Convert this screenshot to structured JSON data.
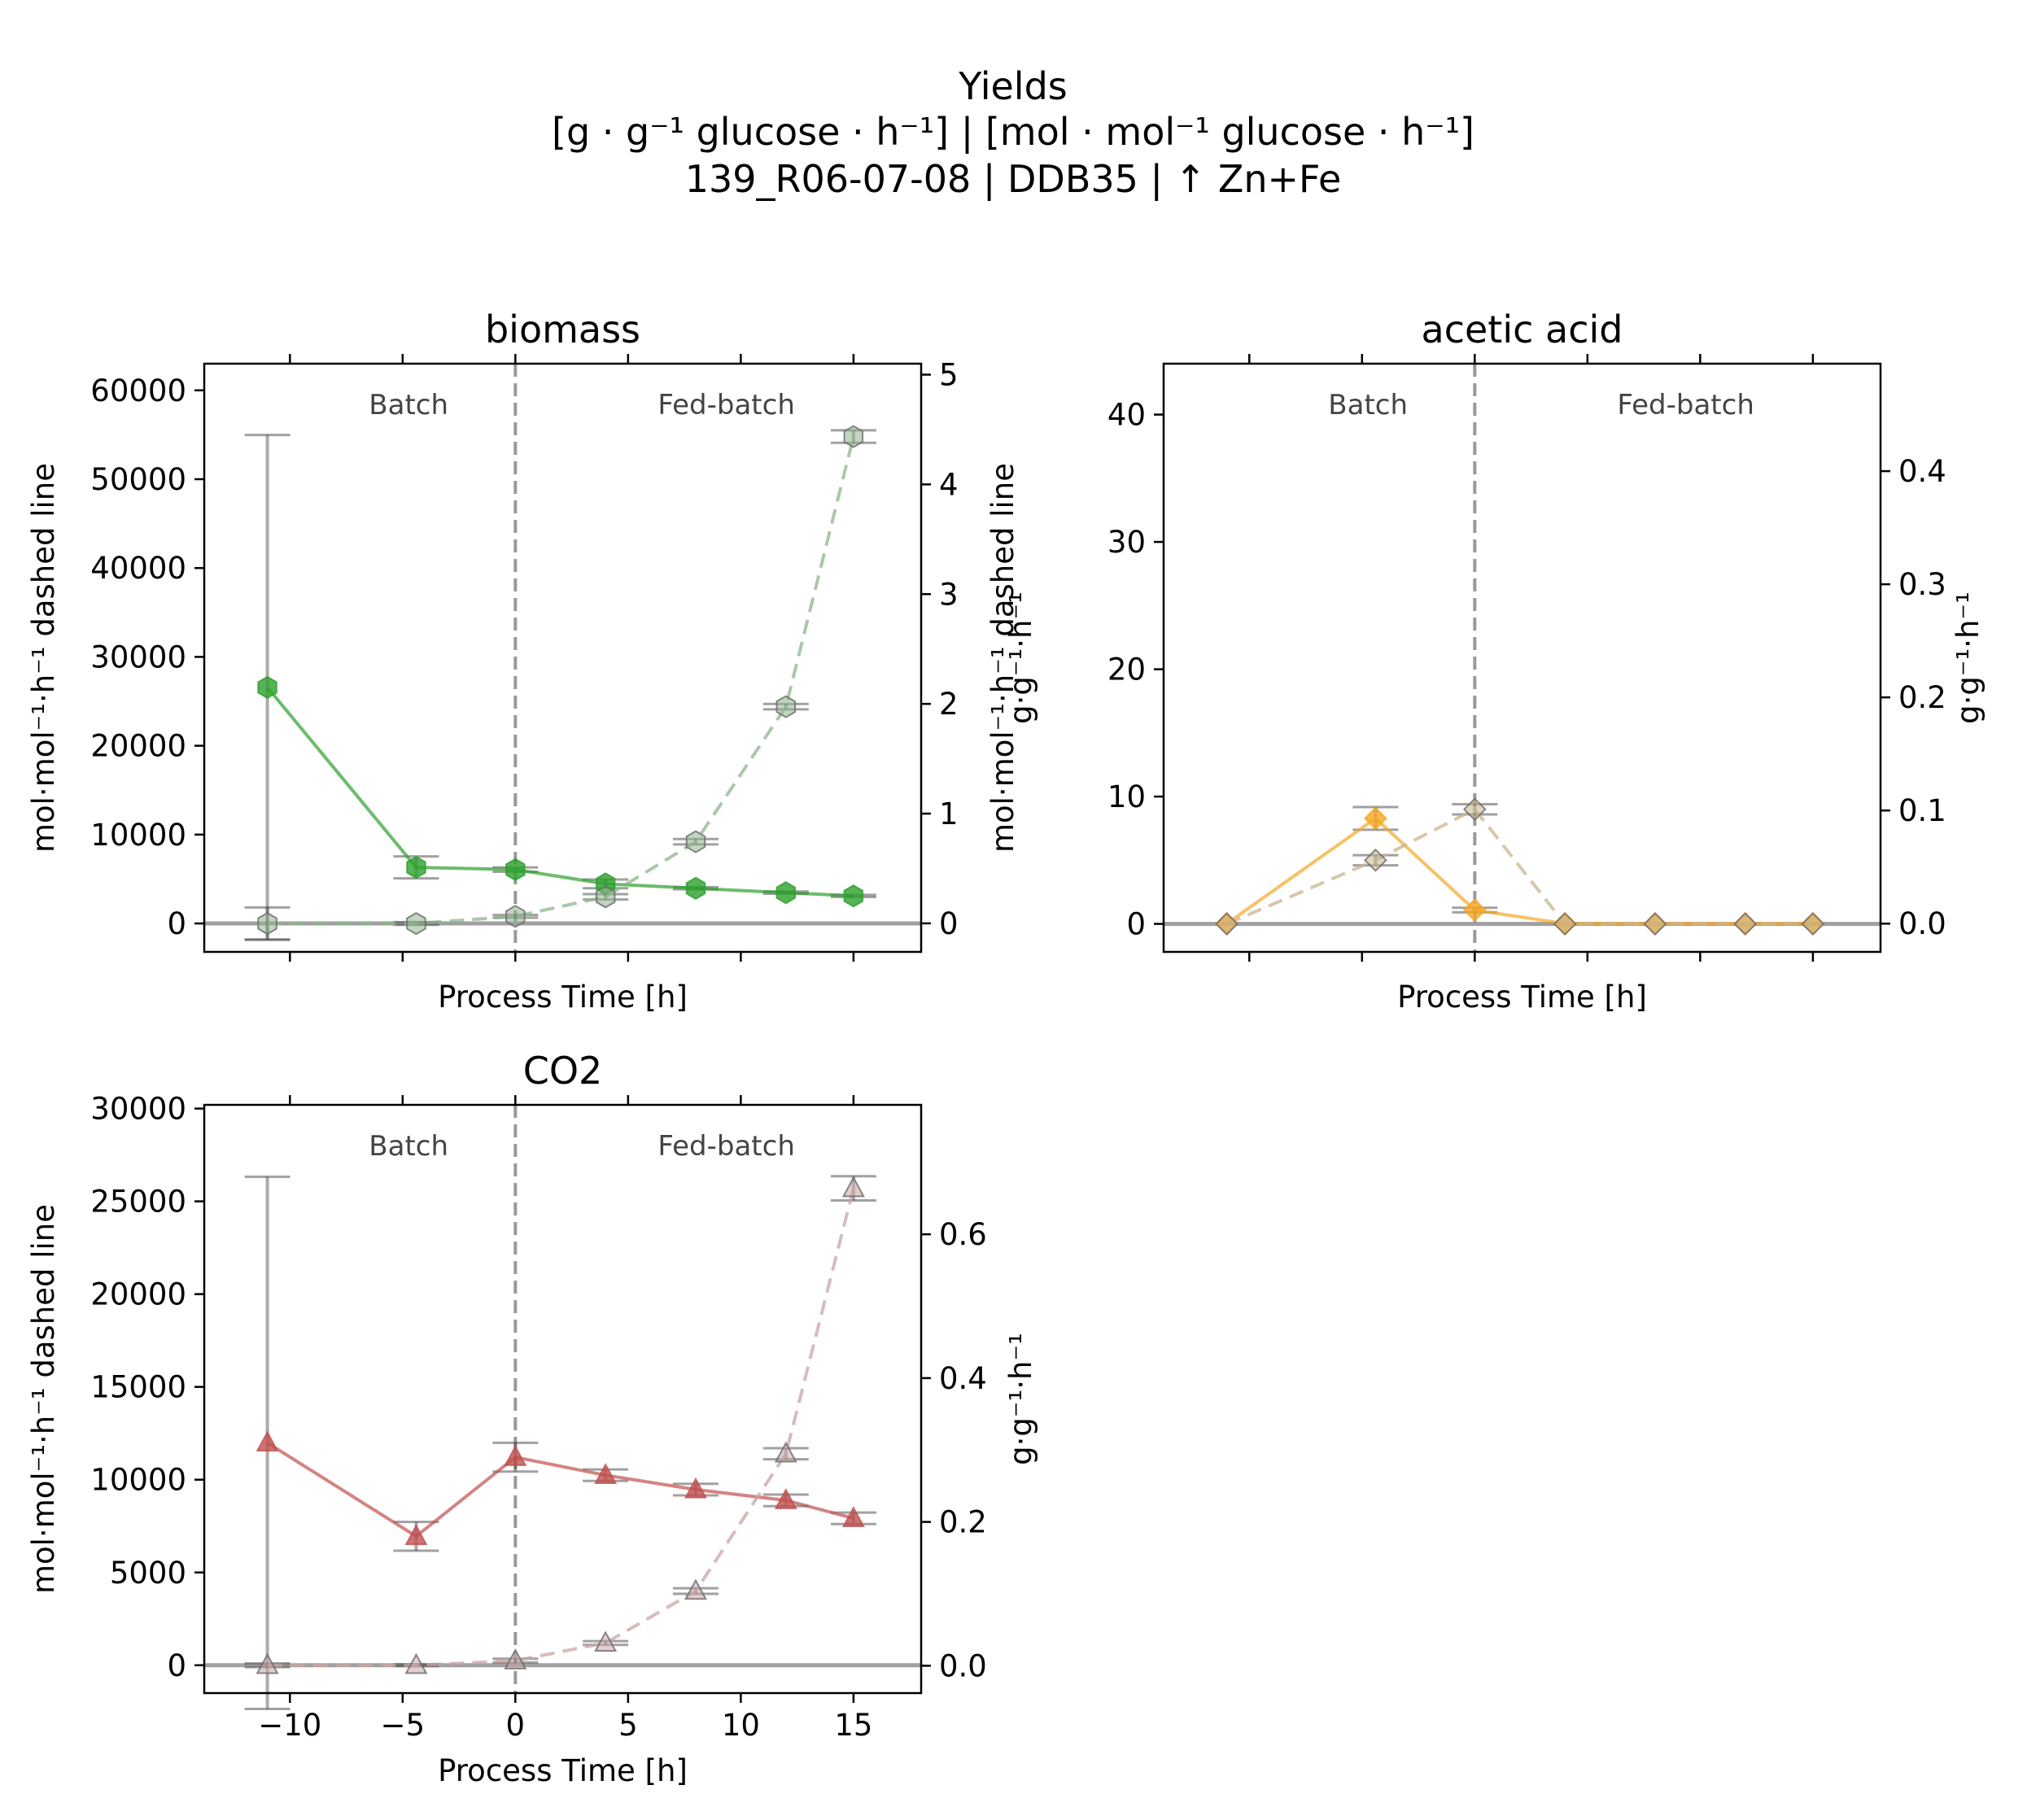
{
  "figure": {
    "title_lines": [
      "Yields",
      "[g · g⁻¹ glucose · h⁻¹]    |    [mol · mol⁻¹ glucose · h⁻¹]",
      "139_R06-07-08  |  DDB35  |  ↑ Zn+Fe"
    ]
  },
  "chart_data": [
    {
      "type": "line",
      "title": "biomass",
      "xlabel": "Process Time [h]",
      "ylabel_left": "mol·mol⁻¹·h⁻¹ dashed line",
      "ylabel_right": "g·g⁻¹·h⁻¹",
      "xlim": [
        -13.8,
        18
      ],
      "ylim_left": [
        -3200,
        63000
      ],
      "ylim_right": [
        -0.26,
        5.1
      ],
      "x_ticks": [
        -10,
        -5,
        0,
        5,
        10,
        15
      ],
      "x_tick_labels_visible": false,
      "y_ticks_left": [
        0,
        10000,
        20000,
        30000,
        40000,
        50000,
        60000
      ],
      "y_ticks_right": [
        0,
        1,
        2,
        3,
        4,
        5
      ],
      "phase_divider_x": 0,
      "phase_labels": [
        "Batch",
        "Fed-batch"
      ],
      "color": "#2ca02c",
      "dashed_color": "#8fb48f",
      "marker": "hexagon",
      "series": [
        {
          "name": "g·g⁻¹·h⁻¹",
          "axis": "right",
          "style": "solid",
          "x": [
            -11,
            -4.4,
            0,
            4,
            8,
            12,
            15
          ],
          "y": [
            2.15,
            0.51,
            0.49,
            0.36,
            0.32,
            0.28,
            0.25
          ],
          "err": [
            2.3,
            0.1,
            0.02,
            0.04,
            0.01,
            0.01,
            0.01
          ]
        },
        {
          "name": "mol·mol⁻¹·h⁻¹",
          "axis": "left",
          "style": "dashed",
          "x": [
            -11,
            -4.4,
            0,
            4,
            8,
            12,
            15
          ],
          "y": [
            0,
            0,
            800,
            3000,
            9200,
            24400,
            54800
          ],
          "err": [
            1800,
            150,
            150,
            300,
            300,
            300,
            700
          ]
        }
      ]
    },
    {
      "type": "line",
      "title": "acetic acid",
      "xlabel": "Process Time [h]",
      "ylabel_left": "mol·mol⁻¹·h⁻¹ dashed line",
      "ylabel_right": "g·g⁻¹·h⁻¹",
      "xlim": [
        -13.8,
        18
      ],
      "ylim_left": [
        -2.2,
        44
      ],
      "ylim_right": [
        -0.025,
        0.495
      ],
      "x_ticks": [
        -10,
        -5,
        0,
        5,
        10,
        15
      ],
      "x_tick_labels_visible": false,
      "y_ticks_left": [
        0,
        10,
        20,
        30,
        40
      ],
      "y_ticks_right": [
        0.0,
        0.1,
        0.2,
        0.3,
        0.4
      ],
      "phase_divider_x": 0,
      "phase_labels": [
        "Batch",
        "Fed-batch"
      ],
      "color": "#f5a623",
      "dashed_color": "#c8b48c",
      "marker": "diamond",
      "series": [
        {
          "name": "g·g⁻¹·h⁻¹",
          "axis": "right",
          "style": "solid",
          "x": [
            -11,
            -4.4,
            0,
            4,
            8,
            12,
            15
          ],
          "y": [
            0.0,
            0.093,
            0.012,
            0.0,
            0.0,
            0.0,
            0.0
          ],
          "err": [
            0.0,
            0.01,
            0.002,
            0.0,
            0.0,
            0.0,
            0.0
          ]
        },
        {
          "name": "mol·mol⁻¹·h⁻¹",
          "axis": "left",
          "style": "dashed",
          "x": [
            -11,
            -4.4,
            0,
            4,
            8,
            12,
            15
          ],
          "y": [
            0,
            5,
            9,
            0,
            0,
            0,
            0
          ],
          "err": [
            0,
            0.4,
            0.4,
            0,
            0,
            0,
            0
          ]
        }
      ]
    },
    {
      "type": "line",
      "title": "CO2",
      "xlabel": "Process Time [h]",
      "ylabel_left": "mol·mol⁻¹·h⁻¹ dashed line",
      "ylabel_right": "g·g⁻¹·h⁻¹",
      "xlim": [
        -13.8,
        18
      ],
      "ylim_left": [
        -1500,
        30200
      ],
      "ylim_right": [
        -0.038,
        0.78
      ],
      "x_ticks": [
        -10,
        -5,
        0,
        5,
        10,
        15
      ],
      "x_tick_labels_visible": true,
      "y_ticks_left": [
        0,
        5000,
        10000,
        15000,
        20000,
        25000,
        30000
      ],
      "y_ticks_right": [
        0.0,
        0.2,
        0.4,
        0.6
      ],
      "phase_divider_x": 0,
      "phase_labels": [
        "Batch",
        "Fed-batch"
      ],
      "color": "#c0504d",
      "dashed_color": "#c9a6a6",
      "marker": "triangle",
      "series": [
        {
          "name": "g·g⁻¹·h⁻¹",
          "axis": "right",
          "style": "solid",
          "x": [
            -11,
            -4.4,
            0,
            4,
            8,
            12,
            15
          ],
          "y": [
            0.31,
            0.18,
            0.29,
            0.265,
            0.245,
            0.23,
            0.205
          ],
          "err": [
            0.37,
            0.02,
            0.02,
            0.008,
            0.008,
            0.008,
            0.008
          ]
        },
        {
          "name": "mol·mol⁻¹·h⁻¹",
          "axis": "left",
          "style": "dashed",
          "x": [
            -11,
            -4.4,
            0,
            4,
            8,
            12,
            15
          ],
          "y": [
            0,
            0,
            250,
            1200,
            4000,
            11400,
            25700
          ],
          "err": [
            100,
            50,
            100,
            100,
            150,
            300,
            650
          ]
        }
      ]
    }
  ]
}
